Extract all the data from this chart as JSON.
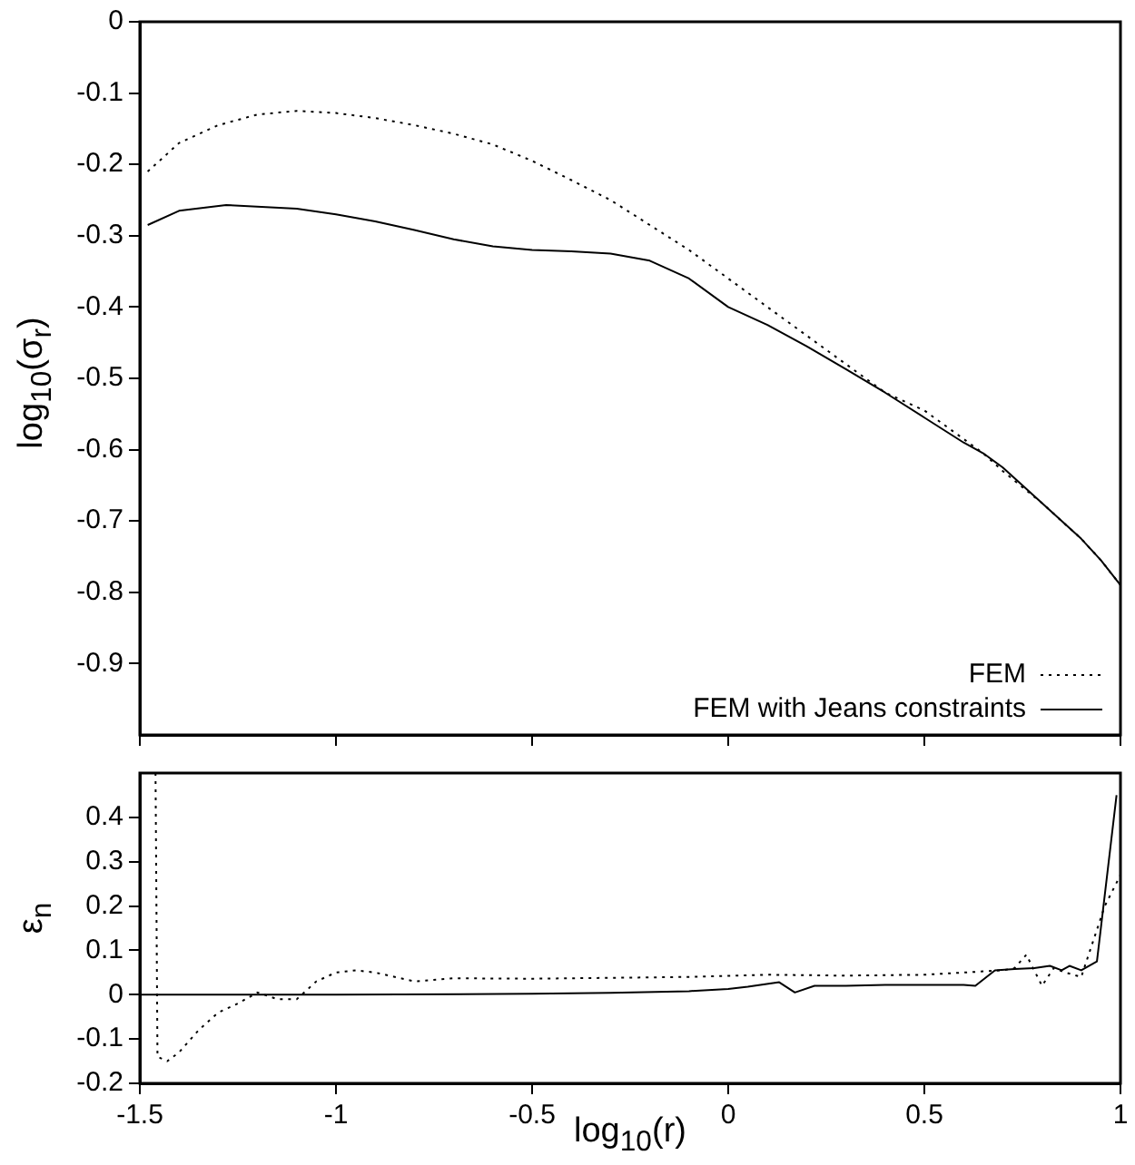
{
  "chart_data": [
    {
      "type": "line",
      "ylabel": "log$_{10}$(σ$_{r}$)",
      "xlim": [
        -1.5,
        1
      ],
      "xticks": [
        -1.5,
        -1,
        -0.5,
        0,
        0.5,
        1
      ],
      "ylim": [
        -1,
        0
      ],
      "yticks": [
        0,
        -0.1,
        -0.2,
        -0.3,
        -0.4,
        -0.5,
        -0.6,
        -0.7,
        -0.8,
        -0.9
      ],
      "tick_labels": "y",
      "grid": false,
      "legend": "bottom right",
      "marker": "none",
      "series": [
        {
          "name": "FEM",
          "color": "#000000",
          "line_style": "dotted",
          "x": [
            -1.48,
            -1.4,
            -1.3,
            -1.2,
            -1.1,
            -1.0,
            -0.9,
            -0.8,
            -0.7,
            -0.6,
            -0.5,
            -0.4,
            -0.3,
            -0.2,
            -0.1,
            0,
            0.1,
            0.2,
            0.3,
            0.4,
            0.5,
            0.6,
            0.65,
            0.7,
            0.8,
            0.9,
            0.95,
            1.0
          ],
          "values": [
            -0.21,
            -0.17,
            -0.145,
            -0.13,
            -0.125,
            -0.128,
            -0.135,
            -0.145,
            -0.157,
            -0.172,
            -0.195,
            -0.222,
            -0.25,
            -0.285,
            -0.32,
            -0.36,
            -0.4,
            -0.44,
            -0.48,
            -0.52,
            -0.545,
            -0.585,
            -0.605,
            -0.63,
            -0.675,
            -0.725,
            -0.755,
            -0.79
          ]
        },
        {
          "name": "FEM with Jeans constraints",
          "color": "#000000",
          "line_style": "solid",
          "x": [
            -1.48,
            -1.4,
            -1.28,
            -1.1,
            -1.0,
            -0.9,
            -0.8,
            -0.7,
            -0.6,
            -0.5,
            -0.4,
            -0.3,
            -0.2,
            -0.1,
            0,
            0.1,
            0.2,
            0.3,
            0.4,
            0.5,
            0.6,
            0.65,
            0.7,
            0.8,
            0.9,
            0.95,
            1.0
          ],
          "values": [
            -0.285,
            -0.265,
            -0.257,
            -0.262,
            -0.27,
            -0.28,
            -0.292,
            -0.305,
            -0.315,
            -0.32,
            -0.322,
            -0.325,
            -0.335,
            -0.36,
            -0.4,
            -0.425,
            -0.455,
            -0.487,
            -0.52,
            -0.555,
            -0.59,
            -0.605,
            -0.625,
            -0.675,
            -0.725,
            -0.755,
            -0.79
          ]
        }
      ]
    },
    {
      "type": "line",
      "xlabel": "log$_{10}$(r)",
      "ylabel": "ε$_{n}$",
      "xlim": [
        -1.5,
        1
      ],
      "xticks": [
        -1.5,
        -1,
        -0.5,
        0,
        0.5,
        1
      ],
      "ylim": [
        -0.2,
        0.5
      ],
      "yticks": [
        -0.2,
        -0.1,
        0,
        0.1,
        0.2,
        0.3,
        0.4
      ],
      "grid": false,
      "marker": "none",
      "series": [
        {
          "color": "#000000",
          "line_style": "dotted",
          "x": [
            -1.46,
            -1.455,
            -1.43,
            -1.4,
            -1.35,
            -1.3,
            -1.25,
            -1.2,
            -1.15,
            -1.1,
            -1.05,
            -1.0,
            -0.95,
            -0.9,
            -0.85,
            -0.8,
            -0.7,
            -0.5,
            -0.3,
            -0.1,
            0.1,
            0.3,
            0.5,
            0.6,
            0.7,
            0.73,
            0.76,
            0.8,
            0.83,
            0.86,
            0.9,
            0.93,
            0.96,
            1.0
          ],
          "values": [
            0.5,
            -0.14,
            -0.15,
            -0.13,
            -0.08,
            -0.04,
            -0.02,
            0.005,
            -0.01,
            -0.01,
            0.03,
            0.05,
            0.055,
            0.05,
            0.04,
            0.03,
            0.037,
            0.036,
            0.038,
            0.04,
            0.045,
            0.043,
            0.045,
            0.05,
            0.055,
            0.06,
            0.09,
            0.02,
            0.06,
            0.05,
            0.04,
            0.12,
            0.2,
            0.27
          ]
        },
        {
          "color": "#000000",
          "line_style": "solid",
          "x": [
            -1.5,
            -1.0,
            -0.5,
            -0.3,
            -0.1,
            0,
            0.05,
            0.13,
            0.17,
            0.22,
            0.3,
            0.4,
            0.5,
            0.6,
            0.63,
            0.68,
            0.73,
            0.78,
            0.82,
            0.85,
            0.87,
            0.9,
            0.94,
            0.99
          ],
          "values": [
            0,
            0,
            0.002,
            0.004,
            0.008,
            0.013,
            0.018,
            0.028,
            0.005,
            0.02,
            0.02,
            0.022,
            0.022,
            0.022,
            0.02,
            0.055,
            0.058,
            0.06,
            0.065,
            0.055,
            0.065,
            0.055,
            0.075,
            0.45
          ]
        }
      ]
    }
  ]
}
